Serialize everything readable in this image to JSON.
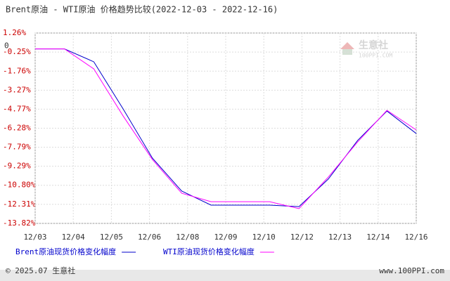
{
  "chart_data": {
    "type": "line",
    "title": "Brent原油 - WTI原油 价格趋势比较(2022-12-03 - 2022-12-16)",
    "x": [
      0,
      1,
      2,
      3,
      4,
      5,
      6,
      7,
      8,
      9,
      10,
      11,
      12,
      13
    ],
    "xlim": [
      0,
      13
    ],
    "xticks": [
      {
        "value": 0,
        "label": "12/03"
      },
      {
        "value": 1.3,
        "label": "12/04"
      },
      {
        "value": 2.6,
        "label": "12/05"
      },
      {
        "value": 3.9,
        "label": "12/06"
      },
      {
        "value": 5.2,
        "label": "12/08"
      },
      {
        "value": 6.5,
        "label": "12/09"
      },
      {
        "value": 7.8,
        "label": "12/10"
      },
      {
        "value": 9.1,
        "label": "12/12"
      },
      {
        "value": 10.4,
        "label": "12/13"
      },
      {
        "value": 11.7,
        "label": "12/14"
      },
      {
        "value": 13,
        "label": "12/16"
      }
    ],
    "ylim": [
      -13.82,
      1.26
    ],
    "yticks": [
      {
        "value": 1.26,
        "label": "1.26%"
      },
      0,
      {
        "value": -0.25,
        "label": "-0.25%"
      },
      {
        "value": -1.76,
        "label": "-1.76%"
      },
      {
        "value": -3.27,
        "label": "-3.27%"
      },
      {
        "value": -4.77,
        "label": "-4.77%"
      },
      {
        "value": -6.28,
        "label": "-6.28%"
      },
      {
        "value": -7.79,
        "label": "-7.79%"
      },
      {
        "value": -9.29,
        "label": "-9.29%"
      },
      {
        "value": -10.8,
        "label": "-10.80%"
      },
      {
        "value": -12.31,
        "label": "-12.31%"
      },
      {
        "value": -13.82,
        "label": "-13.82%"
      }
    ],
    "grid": true,
    "series": [
      {
        "name": "Brent原油现货价格变化幅度",
        "color": "#0000cc",
        "values": [
          0,
          0,
          -1.02,
          -4.75,
          -8.65,
          -11.26,
          -12.37,
          -12.37,
          -12.37,
          -12.49,
          -10.31,
          -7.25,
          -4.92,
          -6.7
        ]
      },
      {
        "name": "WTI原油现货价格变化幅度",
        "color": "#ff00ff",
        "values": [
          0,
          0,
          -1.58,
          -5.31,
          -8.76,
          -11.43,
          -12.1,
          -12.1,
          -12.1,
          -12.65,
          -10.15,
          -7.37,
          -4.86,
          -6.42
        ]
      }
    ],
    "watermark": [
      "生意社",
      "100PPI.COM"
    ],
    "footer_left": "© 2025.07 生意社",
    "footer_right": "www.100PPI.com"
  }
}
